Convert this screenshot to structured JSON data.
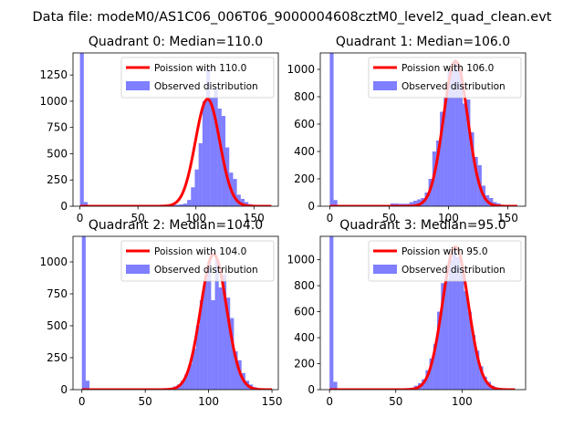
{
  "chart_data": {
    "suptitle": "Data file: modeM0/AS1C06_006T06_9000004608cztM0_level2_quad_clean.evt",
    "panels": [
      {
        "type": "bar",
        "title": "Quadrant 0: Median=110.0",
        "xlim": [
          -6,
          171
        ],
        "ylim": [
          0,
          1460
        ],
        "xticks": [
          0,
          50,
          100,
          150
        ],
        "yticks": [
          0,
          250,
          500,
          750,
          1000,
          1250
        ],
        "legend": {
          "line_label": "Poission with 110.0",
          "bar_label": "Observed distribution"
        },
        "poisson_mean": 110,
        "poisson_peak": 1020,
        "poisson_range": [
          0,
          165
        ],
        "bin_width": 3.3,
        "hist": [
          [
            0,
            1460
          ],
          [
            3.3,
            40
          ],
          [
            6.6,
            8
          ],
          [
            9.9,
            6
          ],
          [
            13.2,
            6
          ],
          [
            16.5,
            6
          ],
          [
            19.8,
            6
          ],
          [
            23.1,
            6
          ],
          [
            26.4,
            6
          ],
          [
            29.7,
            6
          ],
          [
            33,
            6
          ],
          [
            36.3,
            6
          ],
          [
            39.6,
            6
          ],
          [
            42.9,
            6
          ],
          [
            46.2,
            6
          ],
          [
            49.5,
            6
          ],
          [
            52.8,
            6
          ],
          [
            56.1,
            6
          ],
          [
            59.4,
            6
          ],
          [
            62.7,
            6
          ],
          [
            66,
            6
          ],
          [
            69.3,
            8
          ],
          [
            72.6,
            8
          ],
          [
            75.9,
            10
          ],
          [
            79.2,
            12
          ],
          [
            82.5,
            14
          ],
          [
            85.8,
            18
          ],
          [
            89.1,
            25
          ],
          [
            92.4,
            60
          ],
          [
            95.7,
            180
          ],
          [
            99,
            350
          ],
          [
            102.3,
            600
          ],
          [
            105.6,
            1000
          ],
          [
            108.9,
            1300
          ],
          [
            112.2,
            1040
          ],
          [
            115.5,
            1120
          ],
          [
            118.8,
            930
          ],
          [
            122.1,
            860
          ],
          [
            125.4,
            560
          ],
          [
            128.7,
            320
          ],
          [
            132,
            260
          ],
          [
            135.3,
            110
          ],
          [
            138.6,
            70
          ],
          [
            141.9,
            40
          ],
          [
            145.2,
            20
          ],
          [
            148.5,
            12
          ],
          [
            151.8,
            8
          ],
          [
            155.1,
            6
          ],
          [
            158.4,
            5
          ],
          [
            161.7,
            5
          ]
        ]
      },
      {
        "type": "bar",
        "title": "Quadrant 1: Median=106.0",
        "xlim": [
          -8,
          165
        ],
        "ylim": [
          0,
          1120
        ],
        "xticks": [
          0,
          50,
          100,
          150
        ],
        "yticks": [
          0,
          200,
          400,
          600,
          800,
          1000
        ],
        "legend": {
          "line_label": "Poission with 106.0",
          "bar_label": "Observed distribution"
        },
        "poisson_mean": 106,
        "poisson_peak": 1060,
        "poisson_range": [
          0,
          158
        ],
        "bin_width": 3.2,
        "hist": [
          [
            0,
            1120
          ],
          [
            3.2,
            45
          ],
          [
            6.4,
            6
          ],
          [
            9.6,
            5
          ],
          [
            12.8,
            5
          ],
          [
            16,
            5
          ],
          [
            19.2,
            5
          ],
          [
            22.4,
            5
          ],
          [
            25.6,
            5
          ],
          [
            28.8,
            5
          ],
          [
            32,
            5
          ],
          [
            35.2,
            5
          ],
          [
            38.4,
            5
          ],
          [
            41.6,
            5
          ],
          [
            44.8,
            5
          ],
          [
            48,
            8
          ],
          [
            51.2,
            20
          ],
          [
            54.4,
            20
          ],
          [
            57.6,
            18
          ],
          [
            60.8,
            18
          ],
          [
            64,
            18
          ],
          [
            67.2,
            30
          ],
          [
            70.4,
            40
          ],
          [
            73.6,
            50
          ],
          [
            76.8,
            60
          ],
          [
            80,
            100
          ],
          [
            83.2,
            200
          ],
          [
            86.4,
            400
          ],
          [
            89.6,
            480
          ],
          [
            92.8,
            690
          ],
          [
            96,
            800
          ],
          [
            99.2,
            990
          ],
          [
            102.4,
            1000
          ],
          [
            105.6,
            1050
          ],
          [
            108.8,
            980
          ],
          [
            112,
            750
          ],
          [
            115.2,
            780
          ],
          [
            118.4,
            540
          ],
          [
            121.6,
            360
          ],
          [
            124.8,
            300
          ],
          [
            128,
            150
          ],
          [
            131.2,
            80
          ],
          [
            134.4,
            60
          ],
          [
            137.6,
            30
          ],
          [
            140.8,
            20
          ],
          [
            144,
            10
          ],
          [
            147.2,
            6
          ],
          [
            150.4,
            5
          ],
          [
            153.6,
            4
          ]
        ]
      },
      {
        "type": "bar",
        "title": "Quadrant 2: Median=104.0",
        "xlim": [
          -7,
          155
        ],
        "ylim": [
          0,
          1200
        ],
        "xticks": [
          0,
          50,
          100,
          150
        ],
        "yticks": [
          0,
          250,
          500,
          750,
          1000
        ],
        "legend": {
          "line_label": "Poission with 104.0",
          "bar_label": "Observed distribution"
        },
        "poisson_mean": 104,
        "poisson_peak": 1060,
        "poisson_range": [
          0,
          150
        ],
        "bin_width": 3,
        "hist": [
          [
            0,
            1200
          ],
          [
            3,
            70
          ],
          [
            6,
            6
          ],
          [
            9,
            5
          ],
          [
            12,
            5
          ],
          [
            15,
            5
          ],
          [
            18,
            5
          ],
          [
            21,
            5
          ],
          [
            24,
            5
          ],
          [
            27,
            5
          ],
          [
            30,
            5
          ],
          [
            33,
            5
          ],
          [
            36,
            5
          ],
          [
            39,
            5
          ],
          [
            42,
            5
          ],
          [
            45,
            5
          ],
          [
            48,
            5
          ],
          [
            51,
            5
          ],
          [
            54,
            5
          ],
          [
            57,
            5
          ],
          [
            60,
            6
          ],
          [
            63,
            8
          ],
          [
            66,
            10
          ],
          [
            69,
            15
          ],
          [
            72,
            25
          ],
          [
            75,
            40
          ],
          [
            78,
            70
          ],
          [
            81,
            120
          ],
          [
            84,
            200
          ],
          [
            87,
            320
          ],
          [
            90,
            500
          ],
          [
            93,
            700
          ],
          [
            96,
            860
          ],
          [
            99,
            1000
          ],
          [
            102,
            700
          ],
          [
            105,
            1020
          ],
          [
            108,
            800
          ],
          [
            111,
            900
          ],
          [
            114,
            720
          ],
          [
            117,
            560
          ],
          [
            120,
            300
          ],
          [
            123,
            230
          ],
          [
            126,
            130
          ],
          [
            129,
            70
          ],
          [
            132,
            40
          ],
          [
            135,
            20
          ],
          [
            138,
            10
          ],
          [
            141,
            6
          ],
          [
            144,
            5
          ]
        ]
      },
      {
        "type": "bar",
        "title": "Quadrant 3: Median=95.0",
        "xlim": [
          -7,
          148
        ],
        "ylim": [
          0,
          1180
        ],
        "xticks": [
          0,
          50,
          100
        ],
        "yticks": [
          0,
          200,
          400,
          600,
          800,
          1000
        ],
        "legend": {
          "line_label": "Poission with 95.0",
          "bar_label": "Observed distribution"
        },
        "poisson_mean": 95,
        "poisson_peak": 1100,
        "poisson_range": [
          0,
          140
        ],
        "bin_width": 2.9,
        "hist": [
          [
            0,
            1180
          ],
          [
            2.9,
            60
          ],
          [
            5.8,
            6
          ],
          [
            8.7,
            5
          ],
          [
            11.6,
            5
          ],
          [
            14.5,
            5
          ],
          [
            17.4,
            5
          ],
          [
            20.3,
            5
          ],
          [
            23.2,
            5
          ],
          [
            26.1,
            5
          ],
          [
            29,
            5
          ],
          [
            31.9,
            5
          ],
          [
            34.8,
            5
          ],
          [
            37.7,
            5
          ],
          [
            40.6,
            5
          ],
          [
            43.5,
            5
          ],
          [
            46.4,
            5
          ],
          [
            49.3,
            5
          ],
          [
            52.2,
            6
          ],
          [
            55.1,
            8
          ],
          [
            58,
            10
          ],
          [
            60.9,
            15
          ],
          [
            63.8,
            30
          ],
          [
            66.7,
            50
          ],
          [
            69.6,
            80
          ],
          [
            72.5,
            150
          ],
          [
            75.4,
            240
          ],
          [
            78.3,
            350
          ],
          [
            81.2,
            600
          ],
          [
            84.1,
            820
          ],
          [
            87,
            850
          ],
          [
            89.9,
            1000
          ],
          [
            92.8,
            1100
          ],
          [
            95.7,
            1020
          ],
          [
            98.6,
            920
          ],
          [
            101.5,
            760
          ],
          [
            104.4,
            600
          ],
          [
            107.3,
            420
          ],
          [
            110.2,
            300
          ],
          [
            113.1,
            180
          ],
          [
            116,
            100
          ],
          [
            118.9,
            60
          ],
          [
            121.8,
            30
          ],
          [
            124.7,
            18
          ],
          [
            127.6,
            10
          ],
          [
            130.5,
            6
          ],
          [
            133.4,
            5
          ],
          [
            136.3,
            4
          ]
        ]
      }
    ]
  }
}
